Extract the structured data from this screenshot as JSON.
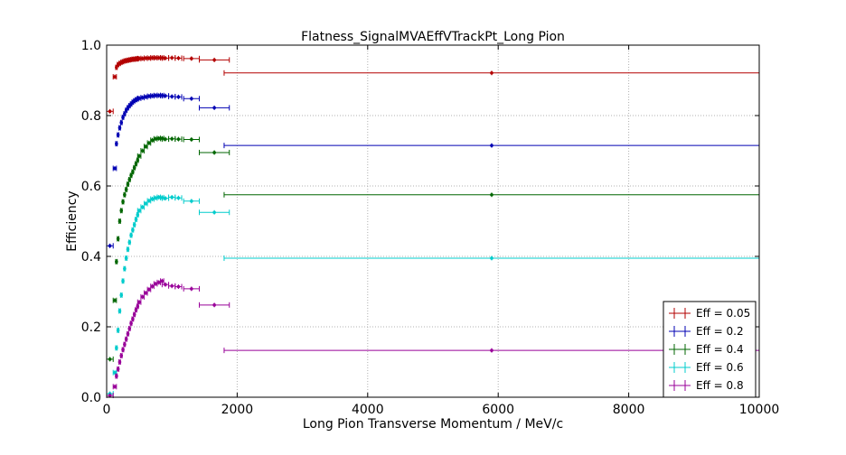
{
  "chart_data": {
    "type": "scatter",
    "title": "Flatness_SignalMVAEffVTrackPt_Long Pion",
    "xlabel": "Long Pion Transverse Momentum / MeV/c",
    "ylabel": "Efficiency",
    "xlim": [
      0,
      10000
    ],
    "ylim": [
      0,
      1.0
    ],
    "grid": true,
    "legend_position": "lower-right",
    "x_ticks": [
      0,
      2000,
      4000,
      6000,
      8000,
      10000
    ],
    "y_ticks": [
      0.0,
      0.2,
      0.4,
      0.6,
      0.8,
      1.0
    ],
    "x_tick_labels": [
      "0",
      "2000",
      "4000",
      "6000",
      "8000",
      "10000"
    ],
    "y_tick_labels": [
      "0.0",
      "0.2",
      "0.4",
      "0.6",
      "0.8",
      "1.0"
    ],
    "bins": {
      "x": [
        50,
        125,
        150,
        175,
        200,
        225,
        250,
        275,
        300,
        325,
        350,
        375,
        400,
        425,
        450,
        475,
        500,
        550,
        600,
        650,
        700,
        750,
        800,
        850,
        900,
        1000,
        1100,
        1300,
        1650,
        5900
      ],
      "xerr": [
        50,
        25,
        12,
        12,
        12,
        12,
        12,
        12,
        12,
        12,
        12,
        12,
        12,
        12,
        12,
        12,
        25,
        25,
        25,
        25,
        25,
        25,
        25,
        25,
        50,
        50,
        50,
        120,
        230,
        4100
      ]
    },
    "series": [
      {
        "name": "Eff = 0.05",
        "color": "#b30000",
        "y": [
          0.812,
          0.91,
          0.937,
          0.945,
          0.948,
          0.951,
          0.953,
          0.955,
          0.956,
          0.957,
          0.958,
          0.959,
          0.96,
          0.96,
          0.961,
          0.961,
          0.962,
          0.962,
          0.963,
          0.963,
          0.964,
          0.964,
          0.964,
          0.964,
          0.963,
          0.964,
          0.963,
          0.962,
          0.958,
          0.921
        ]
      },
      {
        "name": "Eff = 0.2",
        "color": "#0000b3",
        "y": [
          0.43,
          0.65,
          0.72,
          0.745,
          0.765,
          0.78,
          0.795,
          0.805,
          0.815,
          0.822,
          0.828,
          0.833,
          0.838,
          0.842,
          0.845,
          0.847,
          0.849,
          0.851,
          0.853,
          0.855,
          0.856,
          0.857,
          0.857,
          0.857,
          0.856,
          0.854,
          0.853,
          0.848,
          0.822,
          0.715
        ]
      },
      {
        "name": "Eff = 0.4",
        "color": "#006600",
        "y": [
          0.108,
          0.275,
          0.385,
          0.45,
          0.5,
          0.53,
          0.555,
          0.575,
          0.59,
          0.605,
          0.618,
          0.63,
          0.64,
          0.652,
          0.663,
          0.673,
          0.685,
          0.7,
          0.712,
          0.722,
          0.73,
          0.734,
          0.735,
          0.735,
          0.733,
          0.734,
          0.733,
          0.732,
          0.695,
          0.575
        ]
      },
      {
        "name": "Eff = 0.6",
        "color": "#00cccc",
        "y": [
          0.01,
          0.07,
          0.14,
          0.19,
          0.245,
          0.29,
          0.33,
          0.365,
          0.395,
          0.42,
          0.44,
          0.46,
          0.475,
          0.49,
          0.505,
          0.518,
          0.53,
          0.54,
          0.55,
          0.558,
          0.563,
          0.566,
          0.568,
          0.567,
          0.565,
          0.568,
          0.566,
          0.557,
          0.525,
          0.395
        ]
      },
      {
        "name": "Eff = 0.8",
        "color": "#990099",
        "y": [
          0.005,
          0.03,
          0.06,
          0.08,
          0.1,
          0.118,
          0.135,
          0.15,
          0.165,
          0.18,
          0.195,
          0.21,
          0.222,
          0.235,
          0.248,
          0.258,
          0.27,
          0.285,
          0.296,
          0.306,
          0.315,
          0.322,
          0.326,
          0.33,
          0.32,
          0.316,
          0.314,
          0.308,
          0.262,
          0.133
        ]
      }
    ]
  }
}
